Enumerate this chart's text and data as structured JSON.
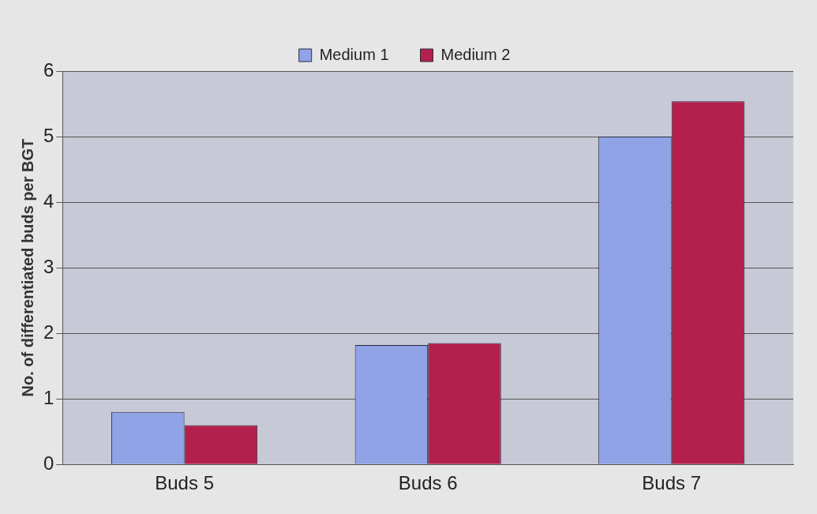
{
  "chart_data": {
    "type": "bar",
    "ylabel": "No. of differentiated buds per BGT",
    "categories": [
      "Buds 5",
      "Buds 6",
      "Buds 7"
    ],
    "series": [
      {
        "name": "Medium 1",
        "color": "#8fa3e6",
        "values": [
          0.8,
          1.82,
          5.0
        ]
      },
      {
        "name": "Medium 2",
        "color": "#b4204e",
        "values": [
          0.6,
          1.85,
          5.54
        ]
      }
    ],
    "ylim": [
      0,
      6
    ],
    "yticks": [
      0,
      1,
      2,
      3,
      4,
      5,
      6
    ],
    "grid": "y",
    "legend": "top"
  }
}
